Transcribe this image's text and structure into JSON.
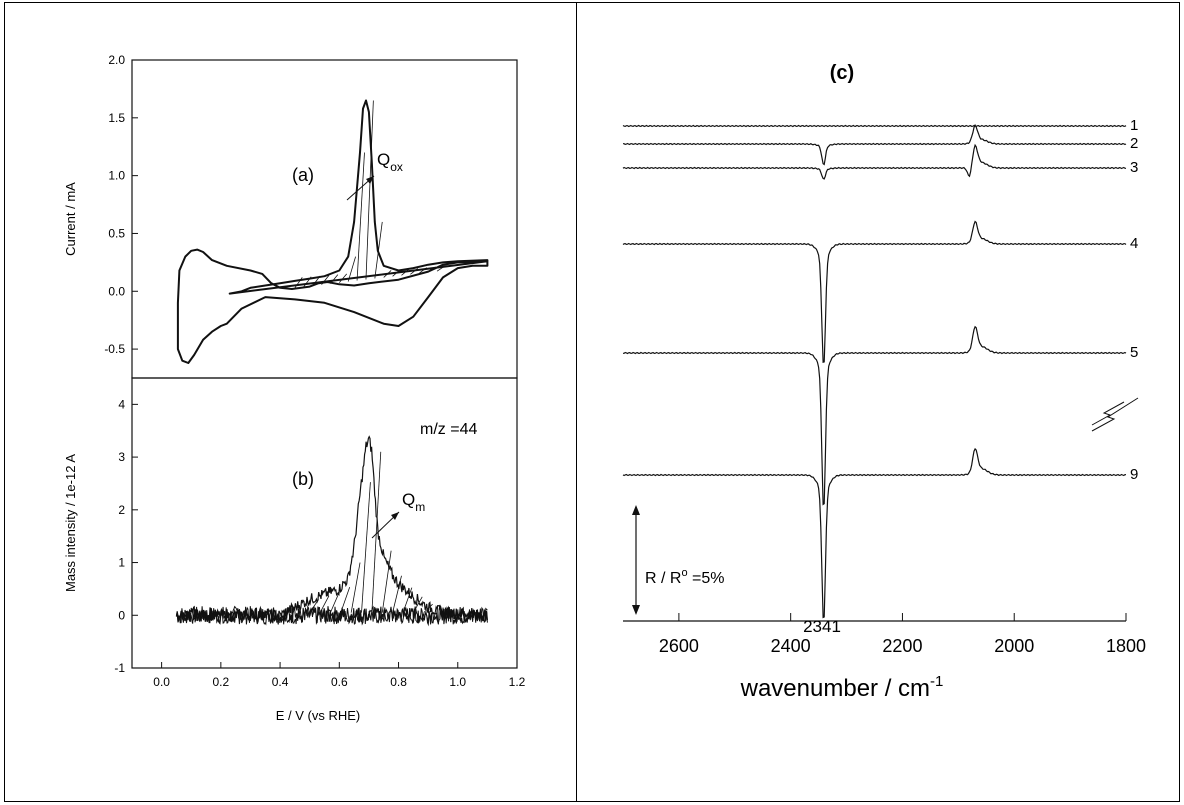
{
  "chart_data": [
    {
      "panel": "(a)",
      "type": "line",
      "ylabel": "Current / mA",
      "xlabel": "",
      "xlim": [
        -0.1,
        1.2
      ],
      "ylim": [
        -0.75,
        2.0
      ],
      "yticks": [
        "-0.5",
        "0.0",
        "0.5",
        "1.0",
        "1.5",
        "2.0"
      ],
      "annotation_base": "Q",
      "annotation_sub": "ox",
      "series": [
        {
          "closed": true,
          "points": [
            [
              0.23,
              -0.02
            ],
            [
              0.27,
              0.0
            ],
            [
              0.3,
              0.03
            ],
            [
              0.35,
              0.05
            ],
            [
              0.4,
              0.07
            ],
            [
              0.45,
              0.09
            ],
            [
              0.5,
              0.11
            ],
            [
              0.55,
              0.13
            ],
            [
              0.6,
              0.18
            ],
            [
              0.63,
              0.3
            ],
            [
              0.65,
              0.6
            ],
            [
              0.67,
              1.2
            ],
            [
              0.68,
              1.58
            ],
            [
              0.69,
              1.65
            ],
            [
              0.7,
              1.55
            ],
            [
              0.71,
              1.1
            ],
            [
              0.72,
              0.6
            ],
            [
              0.73,
              0.35
            ],
            [
              0.75,
              0.22
            ],
            [
              0.8,
              0.18
            ],
            [
              0.85,
              0.2
            ],
            [
              0.9,
              0.23
            ],
            [
              0.95,
              0.25
            ],
            [
              1.0,
              0.26
            ],
            [
              1.1,
              0.27
            ],
            [
              1.1,
              0.22
            ],
            [
              1.05,
              0.22
            ],
            [
              1.0,
              0.2
            ],
            [
              0.95,
              0.12
            ],
            [
              0.9,
              -0.05
            ],
            [
              0.85,
              -0.22
            ],
            [
              0.8,
              -0.3
            ],
            [
              0.75,
              -0.28
            ],
            [
              0.65,
              -0.18
            ],
            [
              0.55,
              -0.1
            ],
            [
              0.45,
              -0.07
            ],
            [
              0.35,
              -0.05
            ],
            [
              0.27,
              -0.15
            ],
            [
              0.22,
              -0.28
            ],
            [
              0.2,
              -0.3
            ],
            [
              0.17,
              -0.35
            ],
            [
              0.14,
              -0.42
            ],
            [
              0.11,
              -0.55
            ],
            [
              0.09,
              -0.62
            ],
            [
              0.07,
              -0.6
            ],
            [
              0.055,
              -0.5
            ],
            [
              0.055,
              -0.1
            ],
            [
              0.06,
              0.18
            ],
            [
              0.08,
              0.3
            ],
            [
              0.1,
              0.35
            ],
            [
              0.12,
              0.36
            ],
            [
              0.14,
              0.34
            ],
            [
              0.17,
              0.27
            ],
            [
              0.22,
              0.22
            ],
            [
              0.3,
              0.18
            ],
            [
              0.34,
              0.15
            ],
            [
              0.37,
              0.07
            ],
            [
              0.4,
              0.03
            ],
            [
              0.44,
              0.02
            ],
            [
              0.5,
              0.04
            ],
            [
              0.53,
              0.07
            ],
            [
              0.56,
              0.08
            ],
            [
              0.6,
              0.06
            ],
            [
              0.65,
              0.05
            ],
            [
              0.7,
              0.07
            ],
            [
              0.8,
              0.1
            ],
            [
              0.9,
              0.17
            ],
            [
              0.95,
              0.23
            ],
            [
              1.0,
              0.25
            ],
            [
              1.1,
              0.26
            ]
          ]
        }
      ]
    },
    {
      "panel": "(b)",
      "type": "line",
      "ylabel": "Mass intensity  / 1e-12  A",
      "xlabel": "E / V (vs RHE)",
      "xlim": [
        -0.1,
        1.2
      ],
      "ylim": [
        -1,
        4.5
      ],
      "xticks": [
        "0.0",
        "0.2",
        "0.4",
        "0.6",
        "0.8",
        "1.0",
        "1.2"
      ],
      "yticks": [
        "-1",
        "0",
        "1",
        "2",
        "3",
        "4"
      ],
      "label_mz": "m/z =44",
      "annotation_base": "Q",
      "annotation_sub": "m",
      "peak_profile": [
        [
          0.05,
          0.0
        ],
        [
          0.4,
          0.0
        ],
        [
          0.45,
          0.15
        ],
        [
          0.5,
          0.3
        ],
        [
          0.55,
          0.4
        ],
        [
          0.6,
          0.5
        ],
        [
          0.63,
          0.7
        ],
        [
          0.65,
          1.3
        ],
        [
          0.67,
          2.3
        ],
        [
          0.69,
          3.2
        ],
        [
          0.7,
          3.35
        ],
        [
          0.71,
          3.1
        ],
        [
          0.72,
          2.3
        ],
        [
          0.73,
          1.6
        ],
        [
          0.75,
          1.1
        ],
        [
          0.78,
          0.75
        ],
        [
          0.8,
          0.6
        ],
        [
          0.85,
          0.35
        ],
        [
          0.9,
          0.15
        ],
        [
          0.95,
          0.05
        ],
        [
          1.1,
          0.0
        ]
      ]
    },
    {
      "panel": "(c)",
      "type": "line",
      "xlabel_base": "wavenumber / cm",
      "xlabel_sup": "-1",
      "xlim": [
        2700,
        1800
      ],
      "xticks": [
        "2600",
        "2400",
        "2200",
        "2000",
        "1800"
      ],
      "spectra_labels": [
        "1",
        "2",
        "3",
        "4",
        "5",
        "9"
      ],
      "spectra_dips": [
        0.0,
        0.11,
        0.06,
        0.65,
        0.83,
        0.78
      ],
      "spectra_peaks": [
        0.0,
        0.09,
        0.11,
        0.11,
        0.13,
        0.13
      ],
      "band_dip": 2341,
      "band_peak": 2070,
      "peak_label": "2341",
      "scale_label_base": "R / R",
      "scale_label_sup": "o",
      "scale_label_tail": " =5%"
    }
  ]
}
